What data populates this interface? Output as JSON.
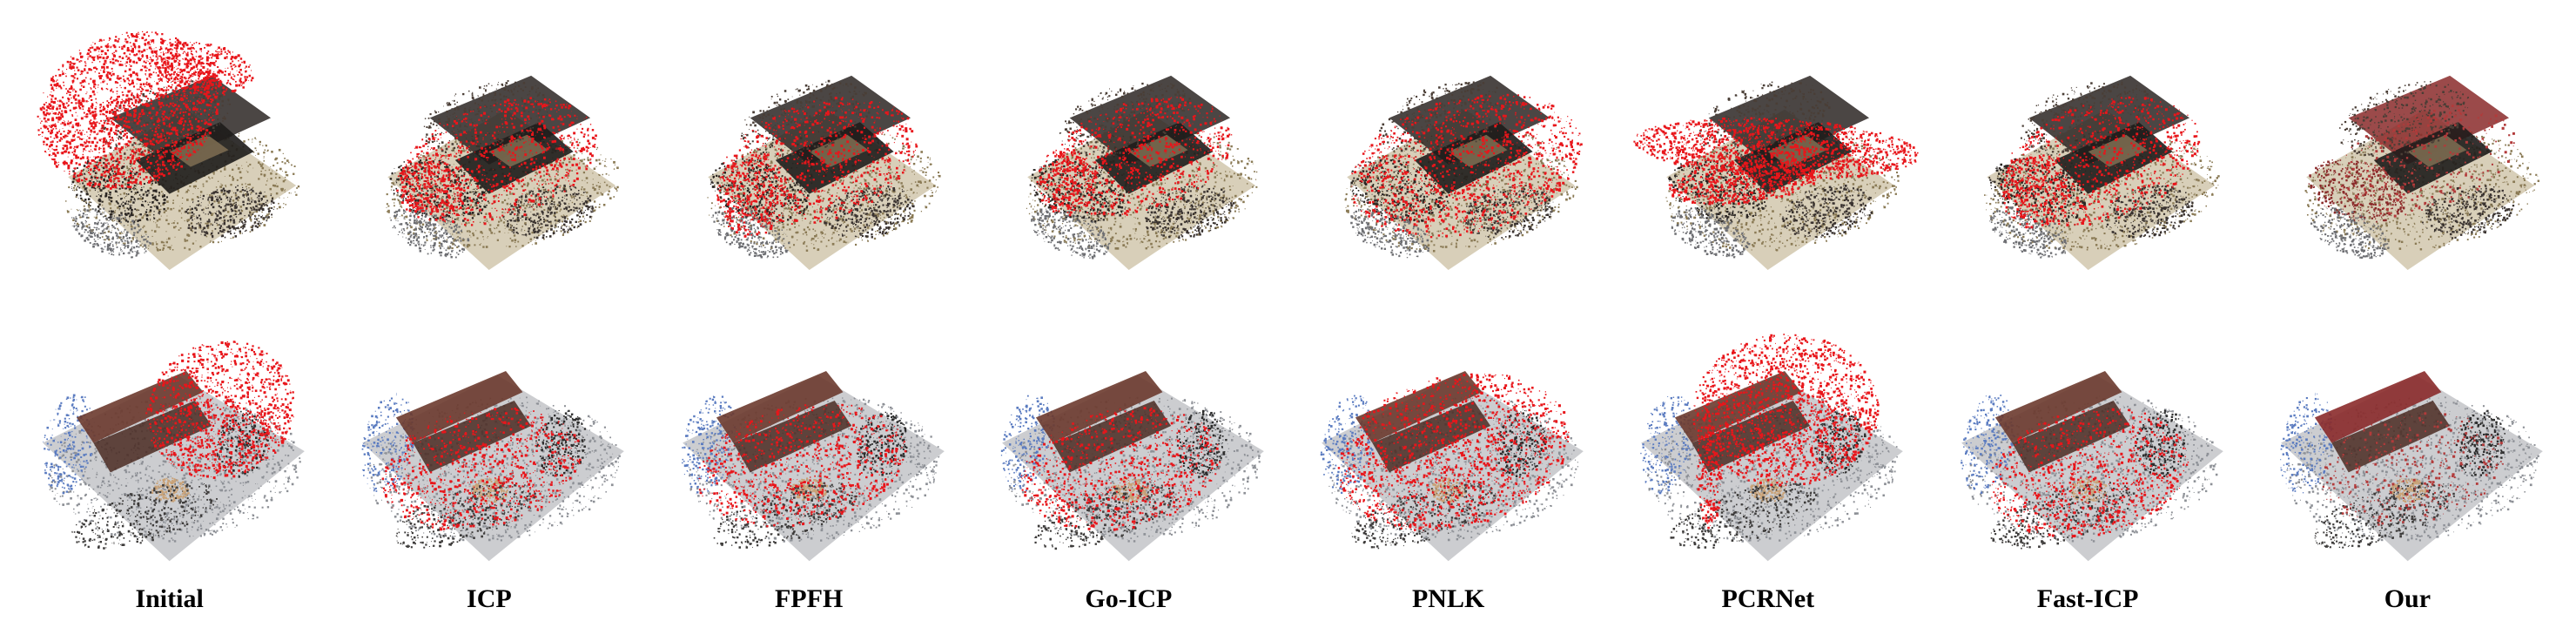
{
  "methods": [
    "Initial",
    "ICP",
    "FPFH",
    "Go-ICP",
    "PNLK",
    "PCRNet",
    "Fast-ICP",
    "Our"
  ],
  "rows": [
    {
      "scene": "scene-1"
    },
    {
      "scene": "scene-2"
    }
  ],
  "colors": {
    "source_cloud": "#e8161b",
    "scene1_dark": "#2b2623",
    "scene1_floor": "#8a7a55",
    "scene2_grey": "#8d9096",
    "scene2_blue": "#5a7bc0",
    "our_tint": "#8a2a2a"
  }
}
